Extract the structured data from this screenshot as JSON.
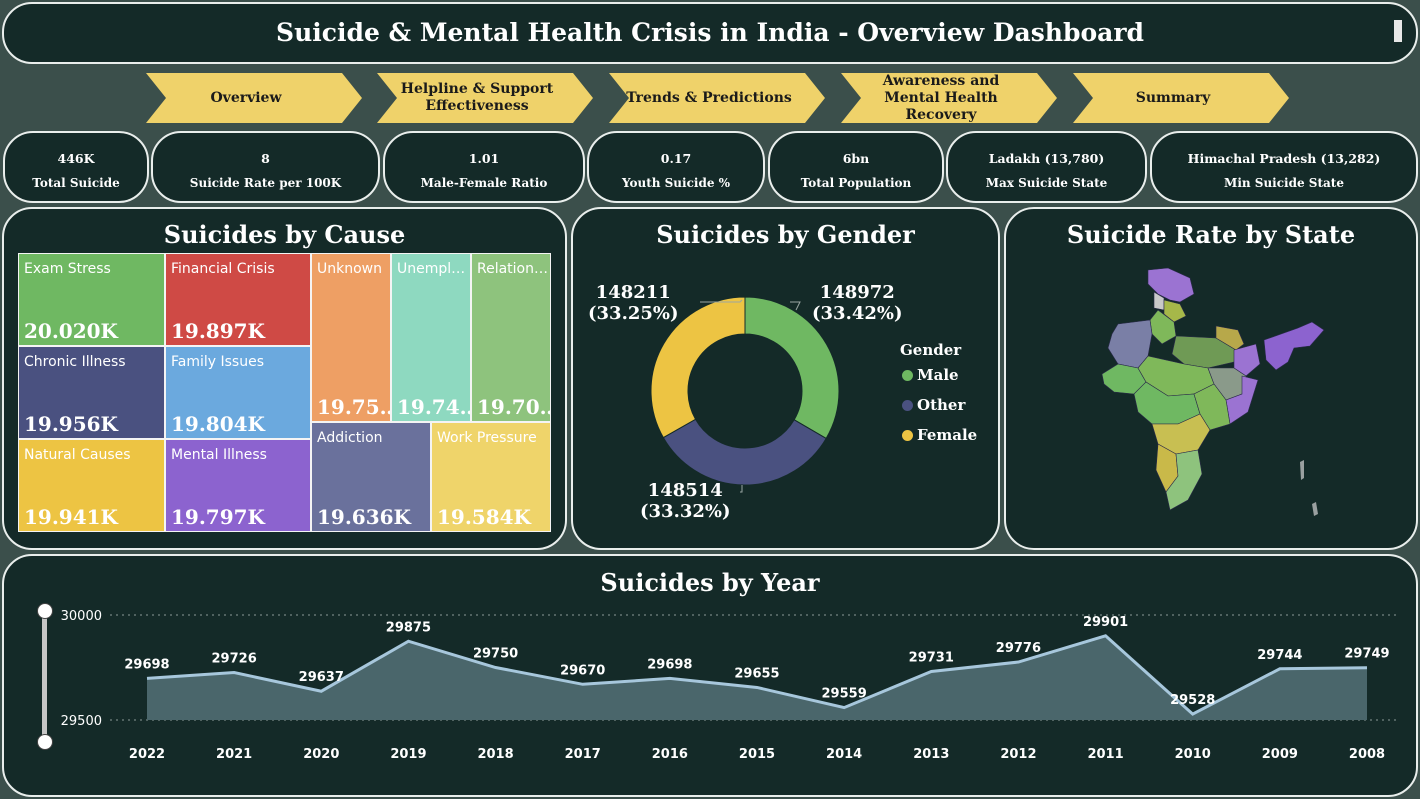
{
  "header": {
    "title": "Suicide & Mental Health Crisis in India - Overview Dashboard"
  },
  "nav": [
    {
      "label": "Overview"
    },
    {
      "label": "Helpline & Support Effectiveness"
    },
    {
      "label": "Trends & Predictions"
    },
    {
      "label": "Awareness and Mental Health Recovery"
    },
    {
      "label": "Summary"
    }
  ],
  "kpis": [
    {
      "value": "446K",
      "label": "Total Suicide"
    },
    {
      "value": "8",
      "label": "Suicide Rate per 100K"
    },
    {
      "value": "1.01",
      "label": "Male-Female Ratio"
    },
    {
      "value": "0.17",
      "label": "Youth Suicide %"
    },
    {
      "value": "6bn",
      "label": "Total Population"
    },
    {
      "value": "Ladakh (13,780)",
      "label": "Max Suicide State"
    },
    {
      "value": "Himachal Pradesh (13,282)",
      "label": "Min Suicide State"
    }
  ],
  "cause_card": {
    "title": "Suicides by Cause",
    "cells": [
      {
        "label": "Exam Stress",
        "value": "20.020K",
        "color": "#6fb862"
      },
      {
        "label": "Financial Crisis",
        "value": "19.897K",
        "color": "#cf4a45"
      },
      {
        "label": "Chronic Illness",
        "value": "19.956K",
        "color": "#4a5180"
      },
      {
        "label": "Family Issues",
        "value": "19.804K",
        "color": "#6ba9de"
      },
      {
        "label": "Natural Causes",
        "value": "19.941K",
        "color": "#edc443"
      },
      {
        "label": "Mental Illness",
        "value": "19.797K",
        "color": "#8c63cf"
      },
      {
        "label": "Unknown",
        "value": "19.75…",
        "color": "#ee9f64"
      },
      {
        "label": "Unempl…",
        "value": "19.74…",
        "color": "#8ed9c0"
      },
      {
        "label": "Relation…",
        "value": "19.70…",
        "color": "#8ec37d"
      },
      {
        "label": "Addiction",
        "value": "19.636K",
        "color": "#6a719c"
      },
      {
        "label": "Work Pressure",
        "value": "19.584K",
        "color": "#efd46a"
      }
    ]
  },
  "gender_card": {
    "title": "Suicides by Gender",
    "legend_title": "Gender",
    "slices": [
      {
        "name": "Male",
        "value": 148972,
        "label_value": "148972",
        "label_pct": "(33.42%)",
        "color": "#6fb862"
      },
      {
        "name": "Other",
        "value": 148514,
        "label_value": "148514",
        "label_pct": "(33.32%)",
        "color": "#4a5180"
      },
      {
        "name": "Female",
        "value": 148211,
        "label_value": "148211",
        "label_pct": "(33.25%)",
        "color": "#edc443"
      }
    ]
  },
  "state_card": {
    "title": "Suicide Rate by State"
  },
  "year_card": {
    "title": "Suicides by Year"
  },
  "chart_data": {
    "type": "area",
    "title": "Suicides by Year",
    "categories": [
      "2022",
      "2021",
      "2020",
      "2019",
      "2018",
      "2017",
      "2016",
      "2015",
      "2014",
      "2013",
      "2012",
      "2011",
      "2010",
      "2009",
      "2008"
    ],
    "values": [
      29698,
      29726,
      29637,
      29875,
      29750,
      29670,
      29698,
      29655,
      29559,
      29731,
      29776,
      29901,
      29528,
      29744,
      29749
    ],
    "yticks": [
      "30000",
      "29500"
    ],
    "ylim": [
      29500,
      30000
    ],
    "grid": true,
    "line_color": "#a7c7dc",
    "fill_color": "#4a666b"
  }
}
